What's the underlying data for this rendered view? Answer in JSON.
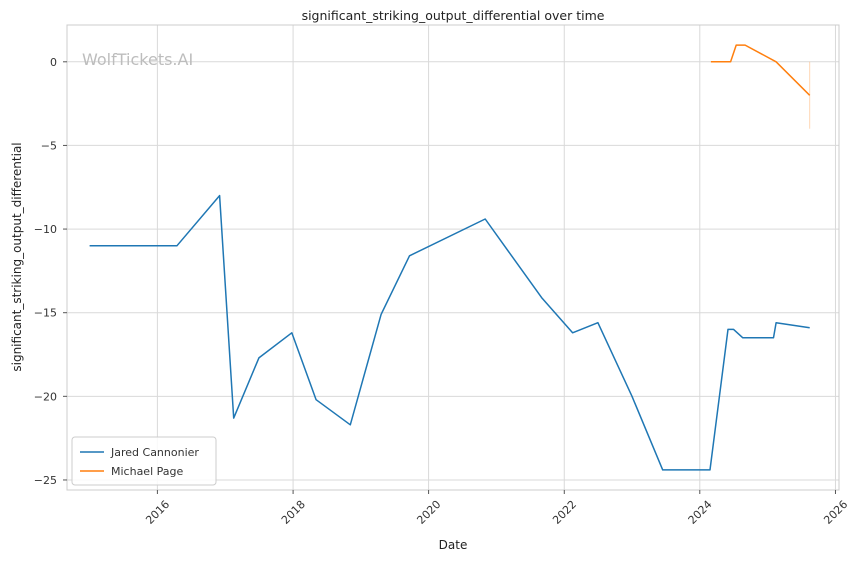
{
  "chart_data": {
    "type": "line",
    "title": "significant_striking_output_differential over time",
    "xlabel": "Date",
    "ylabel": "significant_striking_output_differential",
    "watermark": "WolfTickets.AI",
    "xlim": [
      "2014-09-01",
      "2026-01-20"
    ],
    "ylim": [
      -25.6,
      2.2
    ],
    "x_ticks": [
      "2016",
      "2018",
      "2020",
      "2022",
      "2024",
      "2026"
    ],
    "y_ticks": [
      0,
      -5,
      -10,
      -15,
      -20,
      -25
    ],
    "grid": true,
    "legend_position": "bottom-left",
    "colors": {
      "Jared Cannonier": "#1f77b4",
      "Michael Page": "#ff7f0e"
    },
    "series": [
      {
        "name": "Jared Cannonier",
        "x": [
          "2015-01-01",
          "2016-04-15",
          "2016-12-01",
          "2017-02-15",
          "2017-07-01",
          "2017-12-25",
          "2018-05-05",
          "2018-11-05",
          "2019-04-20",
          "2019-09-20",
          "2020-11-01",
          "2021-09-01",
          "2022-02-15",
          "2022-07-01",
          "2023-01-01",
          "2023-06-15",
          "2024-02-25",
          "2024-06-01",
          "2024-07-01",
          "2024-08-20",
          "2025-02-01",
          "2025-02-15",
          "2025-08-15"
        ],
        "values": [
          -11,
          -11,
          -8,
          -21.3,
          -17.7,
          -16.2,
          -20.2,
          -21.7,
          -15.1,
          -11.6,
          -9.4,
          -14.1,
          -16.2,
          -15.6,
          -20.0,
          -24.4,
          -24.4,
          -16.0,
          -16.0,
          -16.5,
          -16.5,
          -15.6,
          -15.9
        ]
      },
      {
        "name": "Michael Page",
        "x": [
          "2024-03-01",
          "2024-06-15",
          "2024-07-15",
          "2024-09-01",
          "2025-02-15",
          "2025-08-15"
        ],
        "values": [
          0,
          0,
          1,
          1,
          0,
          -2
        ]
      }
    ]
  }
}
